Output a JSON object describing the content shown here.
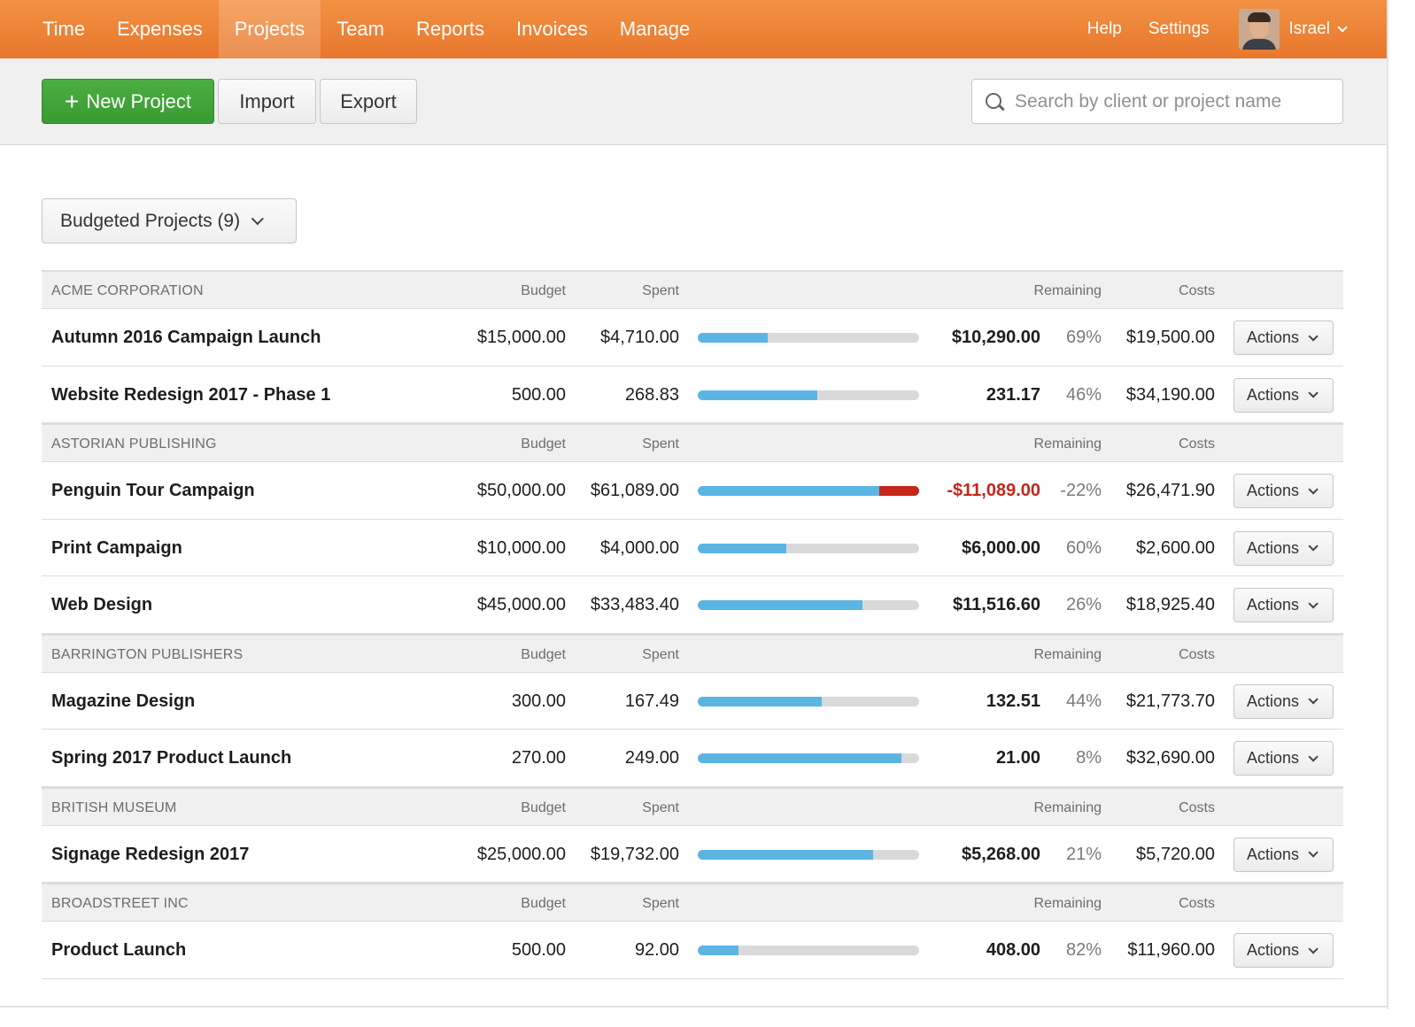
{
  "nav": {
    "items": [
      {
        "label": "Time"
      },
      {
        "label": "Expenses"
      },
      {
        "label": "Projects",
        "active": true
      },
      {
        "label": "Team"
      },
      {
        "label": "Reports"
      },
      {
        "label": "Invoices"
      },
      {
        "label": "Manage"
      }
    ],
    "help": "Help",
    "settings": "Settings",
    "user": "Israel"
  },
  "toolbar": {
    "new_project": "New Project",
    "import": "Import",
    "export": "Export",
    "search_placeholder": "Search by client or project name"
  },
  "filter": {
    "label": "Budgeted Projects (9)"
  },
  "headers": {
    "budget": "Budget",
    "spent": "Spent",
    "remaining": "Remaining",
    "costs": "Costs"
  },
  "actions_label": "Actions",
  "colors": {
    "nav": "#e8772c",
    "green": "#3f9f37",
    "bar": "#5bb5e3",
    "over": "#c5261a"
  },
  "clients": [
    {
      "name": "ACME CORPORATION",
      "projects": [
        {
          "name": "Autumn 2016 Campaign Launch",
          "budget": "$15,000.00",
          "spent": "$4,710.00",
          "progress": 0.314,
          "over": 0,
          "remaining": "$10,290.00",
          "pct": "69%",
          "costs": "$19,500.00"
        },
        {
          "name": "Website Redesign 2017 - Phase 1",
          "budget": "500.00",
          "spent": "268.83",
          "progress": 0.54,
          "over": 0,
          "remaining": "231.17",
          "pct": "46%",
          "costs": "$34,190.00"
        }
      ]
    },
    {
      "name": "ASTORIAN PUBLISHING",
      "projects": [
        {
          "name": "Penguin Tour Campaign",
          "budget": "$50,000.00",
          "spent": "$61,089.00",
          "progress": 1.0,
          "over": 0.18,
          "remaining": "-$11,089.00",
          "pct": "-22%",
          "costs": "$26,471.90",
          "negative": true
        },
        {
          "name": "Print Campaign",
          "budget": "$10,000.00",
          "spent": "$4,000.00",
          "progress": 0.4,
          "over": 0,
          "remaining": "$6,000.00",
          "pct": "60%",
          "costs": "$2,600.00"
        },
        {
          "name": "Web Design",
          "budget": "$45,000.00",
          "spent": "$33,483.40",
          "progress": 0.744,
          "over": 0,
          "remaining": "$11,516.60",
          "pct": "26%",
          "costs": "$18,925.40"
        }
      ]
    },
    {
      "name": "BARRINGTON PUBLISHERS",
      "projects": [
        {
          "name": "Magazine Design",
          "budget": "300.00",
          "spent": "167.49",
          "progress": 0.56,
          "over": 0,
          "remaining": "132.51",
          "pct": "44%",
          "costs": "$21,773.70"
        },
        {
          "name": "Spring 2017 Product Launch",
          "budget": "270.00",
          "spent": "249.00",
          "progress": 0.92,
          "over": 0,
          "remaining": "21.00",
          "pct": "8%",
          "costs": "$32,690.00"
        }
      ]
    },
    {
      "name": "BRITISH MUSEUM",
      "projects": [
        {
          "name": "Signage Redesign 2017",
          "budget": "$25,000.00",
          "spent": "$19,732.00",
          "progress": 0.79,
          "over": 0,
          "remaining": "$5,268.00",
          "pct": "21%",
          "costs": "$5,720.00"
        }
      ]
    },
    {
      "name": "BROADSTREET INC",
      "projects": [
        {
          "name": "Product Launch",
          "budget": "500.00",
          "spent": "92.00",
          "progress": 0.184,
          "over": 0,
          "remaining": "408.00",
          "pct": "82%",
          "costs": "$11,960.00"
        }
      ]
    }
  ]
}
